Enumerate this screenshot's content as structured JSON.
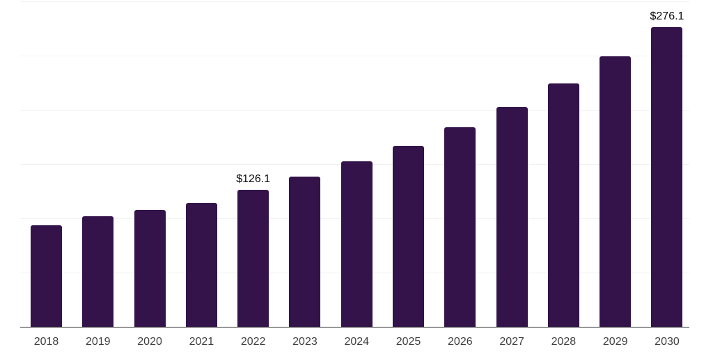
{
  "chart_data": {
    "type": "bar",
    "title": "",
    "xlabel": "",
    "ylabel": "",
    "categories": [
      "2018",
      "2019",
      "2020",
      "2021",
      "2022",
      "2023",
      "2024",
      "2025",
      "2026",
      "2027",
      "2028",
      "2029",
      "2030"
    ],
    "values": [
      93.7,
      102.0,
      107.5,
      114.0,
      126.1,
      138.5,
      152.3,
      166.7,
      184.1,
      202.7,
      224.3,
      249.2,
      276.1
    ],
    "point_labels": {
      "2022": "$126.1",
      "2030": "$276.1"
    },
    "ylim": [
      0,
      300
    ],
    "gridline_step": 50,
    "grid": "horizontal-only",
    "legend_position": "none",
    "colors": {
      "bar": "#331349",
      "gridline": "#f1f1f1",
      "axis_line": "#2b2b2b",
      "x_tick_label": "#3f3f3f",
      "value_label": "#0a0a0a",
      "background": "#ffffff"
    }
  }
}
